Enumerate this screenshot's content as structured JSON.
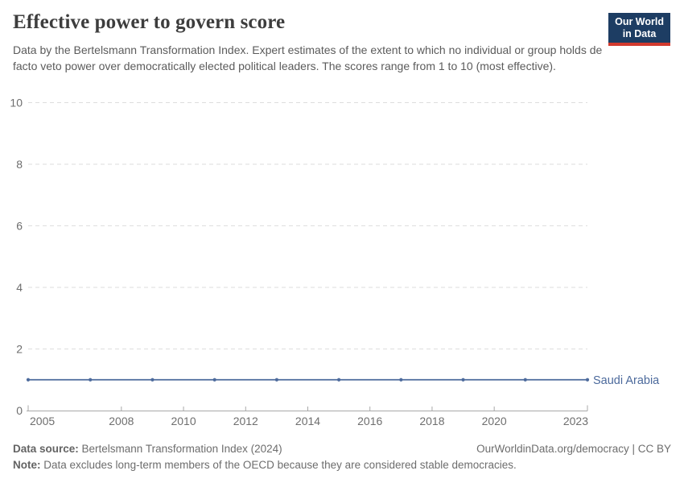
{
  "header": {
    "title": "Effective power to govern score",
    "subtitle": "Data by the Bertelsmann Transformation Index. Expert estimates of the extent to which no individual or group holds de facto veto power over democratically elected political leaders. The scores range from 1 to 10 (most effective)."
  },
  "logo": {
    "line1": "Our World",
    "line2": "in Data",
    "bg_color": "#1d3d63",
    "accent_color": "#d23a2e"
  },
  "footer": {
    "source_label": "Data source:",
    "source_value": " Bertelsmann Transformation Index (2024)",
    "link": "OurWorldinData.org/democracy | CC BY",
    "note_label": "Note:",
    "note_text": " Data excludes long-term members of the OECD because they are considered stable democracies."
  },
  "chart_data": {
    "type": "line",
    "title": "Effective power to govern score",
    "x": [
      2005,
      2007,
      2009,
      2011,
      2013,
      2015,
      2017,
      2019,
      2021,
      2023
    ],
    "series": [
      {
        "name": "Saudi Arabia",
        "values": [
          1,
          1,
          1,
          1,
          1,
          1,
          1,
          1,
          1,
          1
        ],
        "color": "#4C6A9C"
      }
    ],
    "xlabel": "",
    "ylabel": "",
    "xlim": [
      2005,
      2023
    ],
    "ylim": [
      0,
      10
    ],
    "x_ticks": [
      2005,
      2008,
      2010,
      2012,
      2014,
      2016,
      2018,
      2020,
      2023
    ],
    "y_ticks": [
      0,
      2,
      4,
      6,
      8,
      10
    ],
    "grid": true,
    "gridline_color": "#dedede",
    "axis_color": "#a8a8a8",
    "tick_label_color": "#6e6e6e",
    "legend_position": "end-of-line"
  }
}
